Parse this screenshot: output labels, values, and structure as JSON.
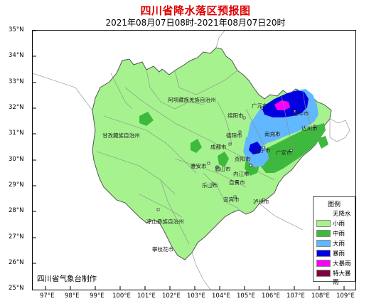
{
  "title": "四川省降水落区预报图",
  "subtitle": "2021年08月07日08时-2021年08月07日20时",
  "credit": "四川省气象台制作",
  "axes": {
    "lat_labels": [
      "35°N",
      "34°N",
      "33°N",
      "32°N",
      "31°N",
      "30°N",
      "29°N",
      "28°N",
      "27°N",
      "26°N",
      "25°N"
    ],
    "lon_labels": [
      "97°E",
      "98°E",
      "99°E",
      "100°E",
      "101°E",
      "102°E",
      "103°E",
      "104°E",
      "105°E",
      "106°E",
      "107°E",
      "108°E",
      "109°E"
    ]
  },
  "legend": {
    "title": "图例",
    "items": [
      {
        "label": "无降水",
        "color": "#ffffff"
      },
      {
        "label": "小雨",
        "color": "#a6f28f"
      },
      {
        "label": "中雨",
        "color": "#3dba3d"
      },
      {
        "label": "大雨",
        "color": "#61b8ff"
      },
      {
        "label": "暴雨",
        "color": "#0000e1"
      },
      {
        "label": "大暴雨",
        "color": "#fa00fa"
      },
      {
        "label": "特大暴雨",
        "color": "#800040"
      }
    ]
  },
  "places": [
    "阿坝藏族羌族自治州",
    "甘孜藏族自治州",
    "凉山彝族自治州",
    "攀枝花市",
    "广元市",
    "巴中市",
    "绵阳市",
    "达州市",
    "南充市",
    "德阳市",
    "成都市",
    "遂宁市",
    "广安市",
    "资阳市",
    "雅安市",
    "眉山市",
    "内江市",
    "乐山市",
    "自贡市",
    "宜宾市",
    "泸州市"
  ],
  "colors": {
    "boundary": "#888888",
    "outline": "#555555",
    "neighbor_fill": "#ffffff"
  }
}
